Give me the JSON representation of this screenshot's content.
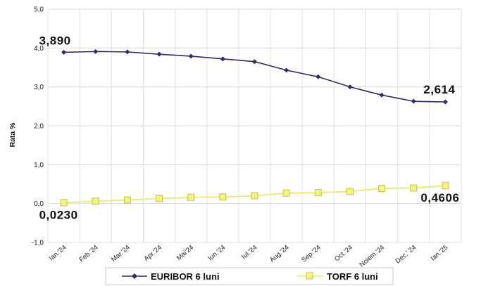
{
  "chart_data": {
    "type": "line",
    "categories": [
      "Ian.'24",
      "Feb.'24",
      "Mar.'24",
      "Apr.'24",
      "Mai'24",
      "Iun.'24",
      "Iul.'24",
      "Aug.'24",
      "Sep.'24",
      "Oct.'24",
      "Noiem.'24",
      "Dec.' 24",
      "Ian.'25"
    ],
    "series": [
      {
        "name": "EURIBOR 6 luni",
        "color": "#2b2f63",
        "marker": "diamond",
        "values": [
          3.89,
          3.91,
          3.9,
          3.84,
          3.79,
          3.72,
          3.65,
          3.43,
          3.26,
          3.0,
          2.79,
          2.63,
          2.614
        ]
      },
      {
        "name": "TORF 6 luni",
        "color": "#eaea6a",
        "marker": "square",
        "values": [
          0.023,
          0.06,
          0.09,
          0.13,
          0.16,
          0.17,
          0.2,
          0.27,
          0.28,
          0.31,
          0.39,
          0.4,
          0.4606
        ]
      }
    ],
    "ylabel": "Rata %",
    "ylim": [
      -1.0,
      5.0
    ],
    "yticks": [
      "-1,0",
      "0,0",
      "1,0",
      "2,0",
      "3,0",
      "4,0",
      "5,0"
    ],
    "grid": true,
    "legend_position": "bottom",
    "data_labels": [
      {
        "text": "3,890",
        "series": 0,
        "index": 0
      },
      {
        "text": "2,614",
        "series": 0,
        "index": 12
      },
      {
        "text": "0,0230",
        "series": 1,
        "index": 0
      },
      {
        "text": "0,4606",
        "series": 1,
        "index": 12
      }
    ]
  }
}
